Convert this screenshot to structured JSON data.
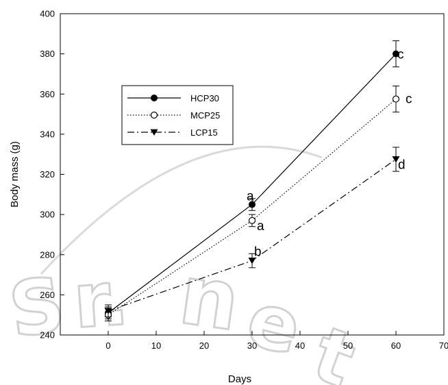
{
  "chart_data": {
    "type": "line",
    "xlabel": "Days",
    "ylabel": "Body mass (g)",
    "xlim": [
      -10,
      70
    ],
    "ylim": [
      240,
      400
    ],
    "xticks": [
      0,
      10,
      20,
      30,
      40,
      50,
      60,
      70
    ],
    "yticks": [
      240,
      260,
      280,
      300,
      320,
      340,
      360,
      380,
      400
    ],
    "legend_position": "upper-left",
    "series": [
      {
        "name": "HCP30",
        "line_style": "solid",
        "marker": "filled-circle",
        "x": [
          0,
          30,
          60
        ],
        "y": [
          251,
          305,
          380
        ],
        "error": [
          3,
          3,
          6.5
        ],
        "labels": [
          "",
          "a",
          "c"
        ]
      },
      {
        "name": "MCP25",
        "line_style": "dotted",
        "marker": "open-circle",
        "x": [
          0,
          30,
          60
        ],
        "y": [
          250,
          297,
          357.5
        ],
        "error": [
          3,
          3,
          6.5
        ],
        "labels": [
          "",
          "a",
          "c"
        ]
      },
      {
        "name": "LCP15",
        "line_style": "dash-dot",
        "marker": "filled-triangle-down",
        "x": [
          0,
          30,
          60
        ],
        "y": [
          252,
          277,
          327.5
        ],
        "error": [
          3,
          3.5,
          6
        ],
        "labels": [
          "",
          "b",
          "d"
        ]
      }
    ]
  }
}
